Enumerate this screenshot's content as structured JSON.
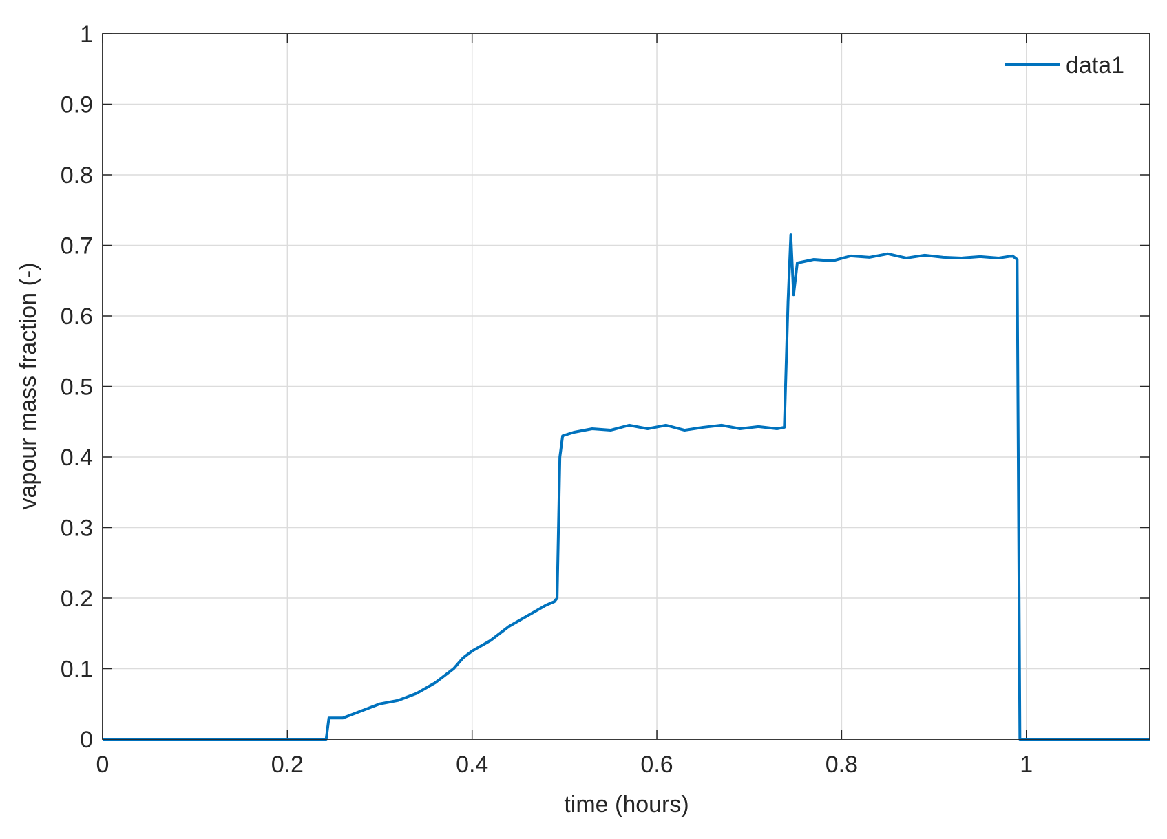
{
  "chart_data": {
    "type": "line",
    "xlabel": "time (hours)",
    "ylabel": "vapour mass fraction (-)",
    "x": [
      0,
      0.242,
      0.245,
      0.26,
      0.27,
      0.28,
      0.29,
      0.3,
      0.32,
      0.34,
      0.36,
      0.38,
      0.39,
      0.4,
      0.42,
      0.44,
      0.46,
      0.48,
      0.489,
      0.492,
      0.495,
      0.498,
      0.51,
      0.53,
      0.55,
      0.57,
      0.59,
      0.61,
      0.63,
      0.65,
      0.67,
      0.69,
      0.71,
      0.73,
      0.738,
      0.742,
      0.745,
      0.748,
      0.752,
      0.77,
      0.79,
      0.81,
      0.83,
      0.85,
      0.87,
      0.89,
      0.91,
      0.93,
      0.95,
      0.97,
      0.985,
      0.99,
      0.993,
      1.1336
    ],
    "series": [
      {
        "name": "data1",
        "color": "#0072bd",
        "values": [
          0,
          0,
          0.03,
          0.03,
          0.035,
          0.04,
          0.045,
          0.05,
          0.055,
          0.065,
          0.08,
          0.1,
          0.115,
          0.125,
          0.14,
          0.16,
          0.175,
          0.19,
          0.195,
          0.2,
          0.4,
          0.43,
          0.435,
          0.44,
          0.438,
          0.445,
          0.44,
          0.445,
          0.438,
          0.442,
          0.445,
          0.44,
          0.443,
          0.44,
          0.442,
          0.62,
          0.715,
          0.63,
          0.675,
          0.68,
          0.678,
          0.685,
          0.683,
          0.688,
          0.682,
          0.686,
          0.683,
          0.682,
          0.684,
          0.682,
          0.685,
          0.68,
          0,
          0
        ]
      }
    ],
    "xlim": [
      0,
      1.1336
    ],
    "ylim": [
      0,
      1
    ],
    "xticks": [
      0,
      0.2,
      0.4,
      0.6,
      0.8,
      1
    ],
    "yticks": [
      0,
      0.1,
      0.2,
      0.3,
      0.4,
      0.5,
      0.6,
      0.7,
      0.8,
      0.9,
      1
    ],
    "grid": true,
    "legend": "upper right"
  }
}
